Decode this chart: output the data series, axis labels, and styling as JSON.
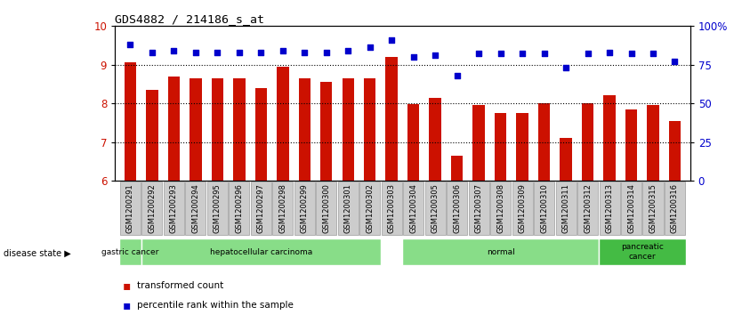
{
  "title": "GDS4882 / 214186_s_at",
  "samples": [
    "GSM1200291",
    "GSM1200292",
    "GSM1200293",
    "GSM1200294",
    "GSM1200295",
    "GSM1200296",
    "GSM1200297",
    "GSM1200298",
    "GSM1200299",
    "GSM1200300",
    "GSM1200301",
    "GSM1200302",
    "GSM1200303",
    "GSM1200304",
    "GSM1200305",
    "GSM1200306",
    "GSM1200307",
    "GSM1200308",
    "GSM1200309",
    "GSM1200310",
    "GSM1200311",
    "GSM1200312",
    "GSM1200313",
    "GSM1200314",
    "GSM1200315",
    "GSM1200316"
  ],
  "bar_values": [
    9.05,
    8.35,
    8.7,
    8.65,
    8.65,
    8.65,
    8.4,
    8.95,
    8.65,
    8.55,
    8.65,
    8.65,
    9.2,
    7.98,
    8.15,
    6.65,
    7.95,
    7.75,
    7.75,
    8.0,
    7.1,
    8.0,
    8.2,
    7.85,
    7.95,
    7.55
  ],
  "percentile_values": [
    88,
    83,
    84,
    83,
    83,
    83,
    83,
    84,
    83,
    83,
    84,
    86,
    91,
    80,
    81,
    68,
    82,
    82,
    82,
    82,
    73,
    82,
    83,
    82,
    82,
    77
  ],
  "ylim_left": [
    6,
    10
  ],
  "ylim_right": [
    0,
    100
  ],
  "yticks_left": [
    6,
    7,
    8,
    9,
    10
  ],
  "yticks_right": [
    0,
    25,
    50,
    75,
    100
  ],
  "ytick_labels_right": [
    "0",
    "25",
    "50",
    "75",
    "100%"
  ],
  "bar_color": "#CC1100",
  "dot_color": "#0000CC",
  "groups": [
    {
      "label": "gastric cancer",
      "start": 0,
      "end": 1,
      "color": "#88dd88"
    },
    {
      "label": "hepatocellular carcinoma",
      "start": 1,
      "end": 12,
      "color": "#88dd88"
    },
    {
      "label": "normal",
      "start": 13,
      "end": 22,
      "color": "#88dd88"
    },
    {
      "label": "pancreatic\ncancer",
      "start": 22,
      "end": 26,
      "color": "#44bb44"
    }
  ],
  "legend_bar_label": "transformed count",
  "legend_dot_label": "percentile rank within the sample",
  "bg_color": "#ffffff",
  "tick_label_bg": "#cccccc",
  "tick_label_edge": "#888888"
}
